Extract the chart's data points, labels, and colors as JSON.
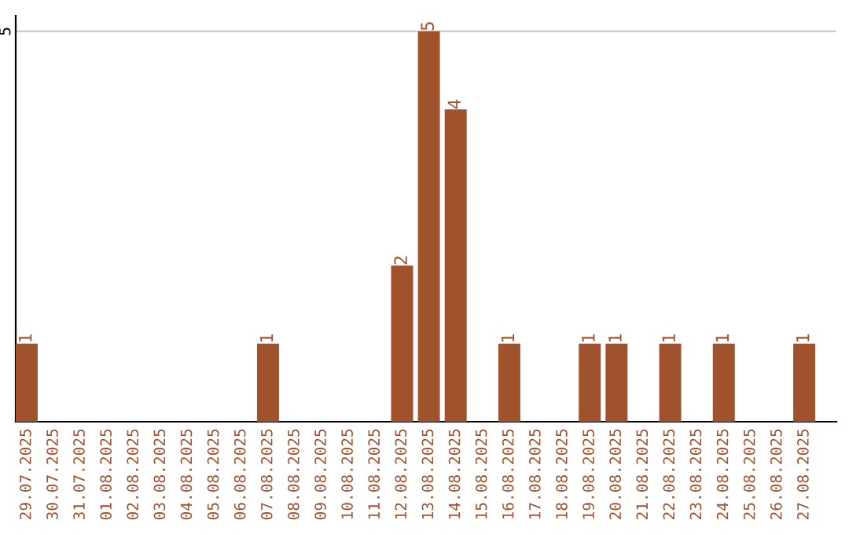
{
  "chart_data": {
    "type": "bar",
    "categories": [
      "29.07.2025",
      "30.07.2025",
      "31.07.2025",
      "01.08.2025",
      "02.08.2025",
      "03.08.2025",
      "04.08.2025",
      "05.08.2025",
      "06.08.2025",
      "07.08.2025",
      "08.08.2025",
      "09.08.2025",
      "10.08.2025",
      "11.08.2025",
      "12.08.2025",
      "13.08.2025",
      "14.08.2025",
      "15.08.2025",
      "16.08.2025",
      "17.08.2025",
      "18.08.2025",
      "19.08.2025",
      "20.08.2025",
      "21.08.2025",
      "22.08.2025",
      "23.08.2025",
      "24.08.2025",
      "25.08.2025",
      "26.08.2025",
      "27.08.2025"
    ],
    "values": [
      1,
      0,
      0,
      0,
      0,
      0,
      0,
      0,
      0,
      1,
      0,
      0,
      0,
      0,
      2,
      5,
      4,
      0,
      1,
      0,
      0,
      1,
      1,
      0,
      1,
      0,
      1,
      0,
      0,
      1
    ],
    "value_labels": [
      "1",
      null,
      null,
      null,
      null,
      null,
      null,
      null,
      null,
      "1",
      null,
      null,
      null,
      null,
      "2",
      "5",
      "4",
      null,
      "1",
      null,
      null,
      "1",
      "1",
      null,
      "1",
      null,
      "1",
      null,
      null,
      "1"
    ],
    "color": "#a0522d",
    "ylim": [
      0,
      5.2
    ],
    "yticks": [
      5
    ],
    "grid": "y"
  }
}
